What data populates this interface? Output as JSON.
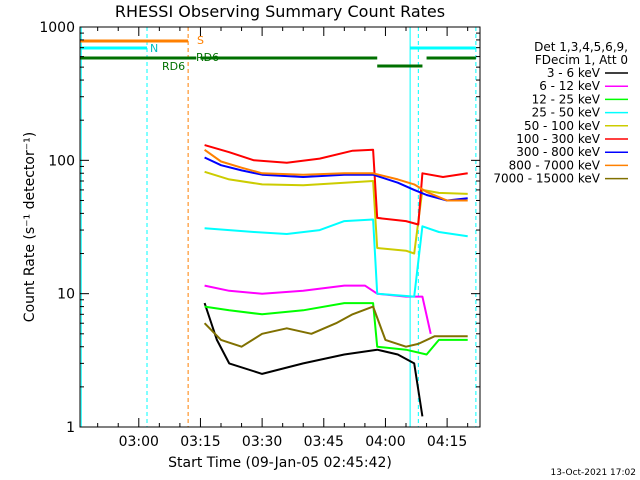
{
  "chart_data": {
    "type": "line",
    "title": "RHESSI Observing Summary Count Rates",
    "xlabel": "Start Time (09-Jan-05 02:45:42)",
    "ylabel": "Count Rate (s⁻¹ detector⁻¹)",
    "yscale": "log",
    "ylim": [
      1,
      1000
    ],
    "xlim": [
      "02:45:42",
      "04:23:00"
    ],
    "y_tick_labels": [
      "1",
      "10",
      "100",
      "1000"
    ],
    "x_ticks": [
      {
        "label": "03:00",
        "t": "03:00"
      },
      {
        "label": "03:15",
        "t": "03:15"
      },
      {
        "label": "03:30",
        "t": "03:30"
      },
      {
        "label": "03:45",
        "t": "03:45"
      },
      {
        "label": "04:00",
        "t": "04:00"
      },
      {
        "label": "04:15",
        "t": "04:15"
      }
    ],
    "legend_header": [
      "Det 1,3,4,5,6,9,",
      "FDecim 1, Att 0"
    ],
    "legend_position": "right",
    "series": [
      {
        "name": "3 - 6 keV",
        "color": "#000000",
        "points": [
          [
            "03:16",
            8.5
          ],
          [
            "03:19",
            4.5
          ],
          [
            "03:22",
            3.0
          ],
          [
            "03:30",
            2.5
          ],
          [
            "03:40",
            3.0
          ],
          [
            "03:50",
            3.5
          ],
          [
            "03:58",
            3.8
          ],
          [
            "04:03",
            3.5
          ],
          [
            "04:07",
            3.0
          ],
          [
            "04:09",
            1.2
          ]
        ]
      },
      {
        "name": "6 - 12 keV",
        "color": "#ff00ff",
        "points": [
          [
            "03:16",
            11.5
          ],
          [
            "03:22",
            10.5
          ],
          [
            "03:30",
            10.0
          ],
          [
            "03:40",
            10.5
          ],
          [
            "03:50",
            11.5
          ],
          [
            "03:55",
            11.5
          ],
          [
            "03:58",
            10.0
          ],
          [
            "04:05",
            9.5
          ],
          [
            "04:09",
            9.5
          ],
          [
            "04:11",
            5.0
          ]
        ]
      },
      {
        "name": "12 - 25 keV",
        "color": "#00ff00",
        "points": [
          [
            "03:16",
            8.0
          ],
          [
            "03:22",
            7.5
          ],
          [
            "03:30",
            7.0
          ],
          [
            "03:40",
            7.5
          ],
          [
            "03:50",
            8.5
          ],
          [
            "03:57",
            8.5
          ],
          [
            "03:58",
            4.0
          ],
          [
            "04:05",
            3.8
          ],
          [
            "04:10",
            3.5
          ],
          [
            "04:13",
            4.5
          ],
          [
            "04:20",
            4.5
          ]
        ]
      },
      {
        "name": "25 - 50 keV",
        "color": "#00ffff",
        "points": [
          [
            "03:16",
            31
          ],
          [
            "03:22",
            30
          ],
          [
            "03:28",
            29
          ],
          [
            "03:36",
            28
          ],
          [
            "03:44",
            30
          ],
          [
            "03:50",
            35
          ],
          [
            "03:57",
            36
          ],
          [
            "03:58",
            10
          ],
          [
            "04:07",
            9.5
          ],
          [
            "04:09",
            32
          ],
          [
            "04:13",
            29
          ],
          [
            "04:20",
            27
          ]
        ]
      },
      {
        "name": "50 - 100 keV",
        "color": "#cccc00",
        "points": [
          [
            "03:16",
            82
          ],
          [
            "03:22",
            72
          ],
          [
            "03:30",
            66
          ],
          [
            "03:40",
            65
          ],
          [
            "03:50",
            68
          ],
          [
            "03:57",
            70
          ],
          [
            "03:58",
            22
          ],
          [
            "04:05",
            21
          ],
          [
            "04:07",
            20
          ],
          [
            "04:09",
            60
          ],
          [
            "04:13",
            57
          ],
          [
            "04:20",
            56
          ]
        ]
      },
      {
        "name": "100 - 300 keV",
        "color": "#ff0000",
        "points": [
          [
            "03:16",
            130
          ],
          [
            "03:22",
            115
          ],
          [
            "03:28",
            100
          ],
          [
            "03:36",
            96
          ],
          [
            "03:44",
            103
          ],
          [
            "03:52",
            118
          ],
          [
            "03:57",
            120
          ],
          [
            "03:58",
            37
          ],
          [
            "04:05",
            35
          ],
          [
            "04:08",
            33
          ],
          [
            "04:09",
            80
          ],
          [
            "04:14",
            75
          ],
          [
            "04:20",
            80
          ]
        ]
      },
      {
        "name": "300 - 800 keV",
        "color": "#0000ff",
        "points": [
          [
            "03:16",
            105
          ],
          [
            "03:20",
            92
          ],
          [
            "03:25",
            84
          ],
          [
            "03:30",
            78
          ],
          [
            "03:40",
            75
          ],
          [
            "03:50",
            78
          ],
          [
            "03:57",
            78
          ],
          [
            "04:03",
            68
          ],
          [
            "04:07",
            60
          ],
          [
            "04:10",
            55
          ],
          [
            "04:15",
            50
          ],
          [
            "04:20",
            52
          ]
        ]
      },
      {
        "name": "800 - 7000 keV",
        "color": "#ff8000",
        "points": [
          [
            "03:16",
            120
          ],
          [
            "03:20",
            98
          ],
          [
            "03:25",
            88
          ],
          [
            "03:30",
            80
          ],
          [
            "03:40",
            78
          ],
          [
            "03:50",
            80
          ],
          [
            "03:57",
            80
          ],
          [
            "04:03",
            72
          ],
          [
            "04:07",
            66
          ],
          [
            "04:10",
            58
          ],
          [
            "04:15",
            50
          ],
          [
            "04:20",
            50
          ]
        ]
      },
      {
        "name": "7000 - 15000 keV",
        "color": "#807000",
        "points": [
          [
            "03:16",
            6.0
          ],
          [
            "03:20",
            4.5
          ],
          [
            "03:25",
            4.0
          ],
          [
            "03:30",
            5.0
          ],
          [
            "03:36",
            5.5
          ],
          [
            "03:42",
            5.0
          ],
          [
            "03:48",
            6.0
          ],
          [
            "03:52",
            7.0
          ],
          [
            "03:57",
            8.0
          ],
          [
            "04:00",
            4.5
          ],
          [
            "04:05",
            4.0
          ],
          [
            "04:08",
            4.2
          ],
          [
            "04:12",
            4.8
          ],
          [
            "04:20",
            4.8
          ]
        ]
      }
    ],
    "status_bars": [
      {
        "label": "S",
        "color": "#ff8000",
        "segments": [
          [
            "02:45:42",
            "03:12"
          ]
        ]
      },
      {
        "label": "N",
        "color": "#00ffff",
        "segments": [
          [
            "02:45:42",
            "03:02"
          ],
          [
            "04:06",
            "04:22"
          ]
        ]
      },
      {
        "label": "RD6",
        "color": "#007000",
        "segments": [
          [
            "02:45:42",
            "03:14"
          ],
          [
            "03:15",
            "03:58"
          ],
          [
            "03:58",
            "04:09"
          ],
          [
            "04:10",
            "04:22"
          ]
        ]
      }
    ],
    "status_labels": [
      "S",
      "N",
      "RD6",
      "RD6"
    ],
    "vertical_markers": [
      {
        "t": "02:46",
        "color": "#00ffff",
        "style": "solid"
      },
      {
        "t": "03:02",
        "color": "#00ffff",
        "style": "dashed"
      },
      {
        "t": "03:12",
        "color": "#ff8000",
        "style": "dashed"
      },
      {
        "t": "04:06",
        "color": "#00ffff",
        "style": "solid"
      },
      {
        "t": "04:08",
        "color": "#00ffff",
        "style": "dashed"
      },
      {
        "t": "04:22",
        "color": "#00ffff",
        "style": "dashed"
      }
    ],
    "timestamp": "13-Oct-2021 17:02"
  }
}
